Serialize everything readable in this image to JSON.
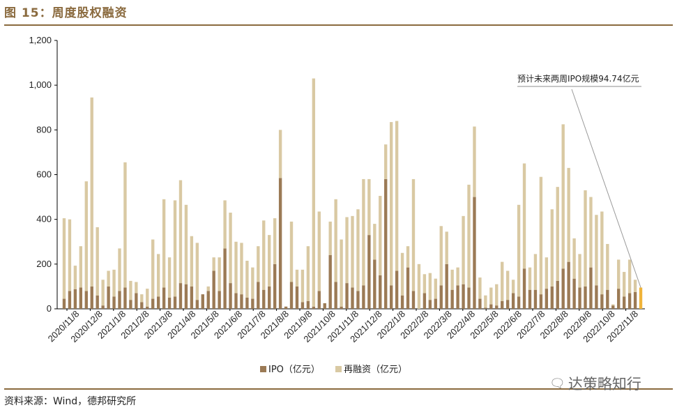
{
  "header": {
    "title": "图 15：周度股权融资"
  },
  "footer": {
    "source": "资料来源：Wind，德邦研究所",
    "watermark": "达策略知行"
  },
  "chart_data": {
    "type": "bar",
    "stacked": true,
    "ylim": [
      0,
      1200
    ],
    "yticks": [
      "0",
      "200",
      "400",
      "600",
      "800",
      "1,000",
      "1,200"
    ],
    "ytick_values": [
      0,
      200,
      400,
      600,
      800,
      1000,
      1200
    ],
    "xtick_labels": [
      "2020/11/8",
      "2020/12/8",
      "2021/1/8",
      "2021/2/8",
      "2021/3/8",
      "2021/4/8",
      "2021/5/8",
      "2021/6/8",
      "2021/7/8",
      "2021/8/8",
      "2021/9/8",
      "2021/10/8",
      "2021/11/8",
      "2021/12/8",
      "2022/1/8",
      "2022/2/8",
      "2022/3/8",
      "2022/4/8",
      "2022/5/8",
      "2022/6/8",
      "2022/7/8",
      "2022/8/8",
      "2022/9/8",
      "2022/10/8",
      "2022/11/8"
    ],
    "series": [
      {
        "name": "IPO（亿元）",
        "color": "#9b7a55",
        "values": [
          45,
          80,
          88,
          95,
          80,
          100,
          60,
          15,
          100,
          55,
          80,
          95,
          40,
          70,
          30,
          10,
          45,
          55,
          95,
          50,
          55,
          115,
          110,
          100,
          40,
          65,
          80,
          170,
          80,
          270,
          115,
          70,
          65,
          50,
          45,
          120,
          85,
          100,
          200,
          585,
          10,
          120,
          100,
          30,
          35,
          10,
          80,
          25,
          240,
          120,
          10,
          115,
          95,
          80,
          105,
          330,
          220,
          150,
          580,
          105,
          170,
          60,
          185,
          80,
          0,
          70,
          40,
          45,
          105,
          200,
          85,
          105,
          110,
          95,
          500,
          45,
          5,
          20,
          15,
          35,
          40,
          70,
          55,
          180,
          85,
          85,
          65,
          90,
          100,
          125,
          180,
          210,
          135,
          95,
          100,
          185,
          105,
          65,
          85,
          15,
          90,
          55,
          70,
          75,
          95
        ],
        "last_color": "#f0b43a",
        "last_note": "forecast"
      },
      {
        "name": "再融资（亿元）",
        "color": "#d9c9a3",
        "values": [
          360,
          320,
          105,
          185,
          490,
          845,
          305,
          115,
          70,
          120,
          190,
          560,
          85,
          50,
          35,
          80,
          265,
          190,
          395,
          180,
          430,
          460,
          355,
          225,
          255,
          0,
          20,
          60,
          150,
          215,
          315,
          230,
          230,
          165,
          140,
          160,
          310,
          230,
          205,
          215,
          0,
          270,
          75,
          145,
          245,
          1020,
          355,
          0,
          150,
          370,
          300,
          295,
          320,
          365,
          475,
          250,
          160,
          355,
          155,
          730,
          670,
          190,
          95,
          500,
          200,
          85,
          120,
          90,
          265,
          145,
          90,
          80,
          305,
          460,
          315,
          95,
          55,
          75,
          95,
          175,
          130,
          60,
          410,
          470,
          100,
          160,
          525,
          140,
          345,
          420,
          645,
          420,
          180,
          150,
          430,
          315,
          315,
          370,
          205,
          5,
          130,
          110,
          150,
          55,
          0
        ]
      }
    ],
    "annotation": "预计未来两周IPO规模94.74亿元",
    "legend": [
      "IPO（亿元）",
      "再融资（亿元）"
    ],
    "legend_position": "bottom"
  }
}
